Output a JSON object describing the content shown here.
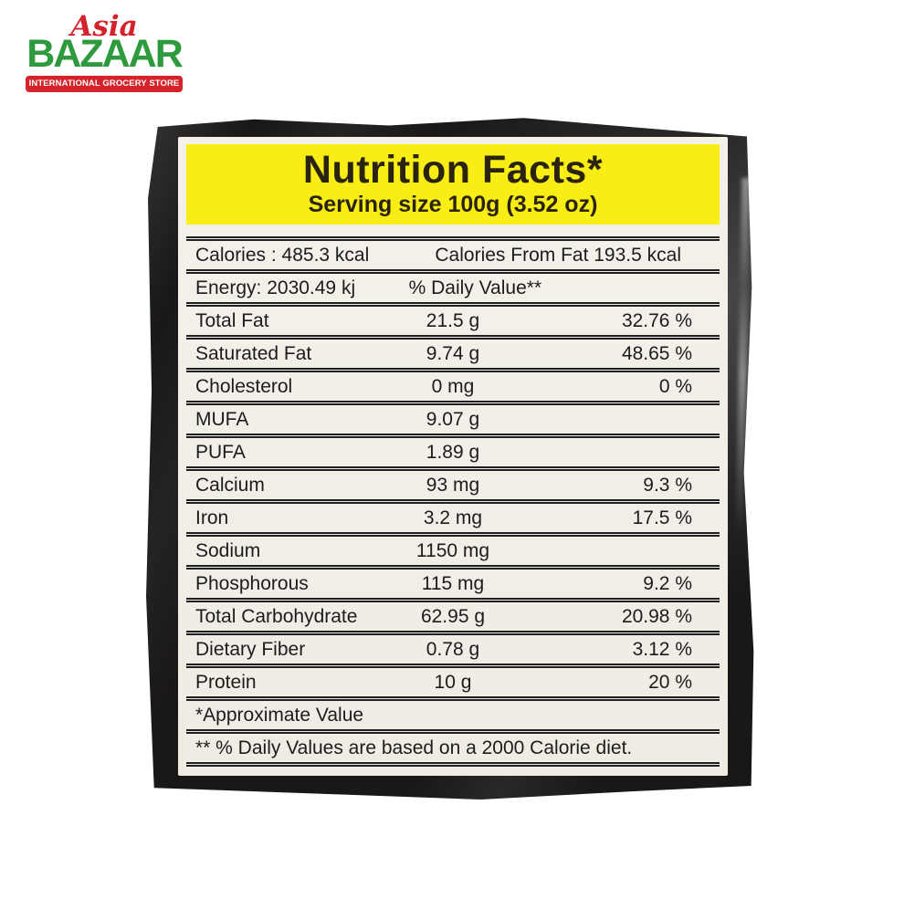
{
  "logo": {
    "asia": "Asia",
    "bazaar": "BAZAAR",
    "tagline": "INTERNATIONAL GROCERY STORE",
    "colors": {
      "red": "#d4232b",
      "green": "#2d9b3d"
    }
  },
  "label": {
    "title": "Nutrition Facts*",
    "serving_size": "Serving size 100g (3.52 oz)",
    "calories_row": {
      "left": "Calories : 485.3 kcal",
      "right": "Calories From Fat 193.5 kcal"
    },
    "energy_row": {
      "left": "Energy: 2030.49 kj",
      "right": "% Daily Value**"
    },
    "nutrients": [
      {
        "name": "Total Fat",
        "amount": "21.5 g",
        "dv": "32.76 %"
      },
      {
        "name": "Saturated Fat",
        "amount": "9.74 g",
        "dv": "48.65 %"
      },
      {
        "name": "Cholesterol",
        "amount": "0 mg",
        "dv": "0 %"
      },
      {
        "name": "MUFA",
        "amount": "9.07 g",
        "dv": ""
      },
      {
        "name": "PUFA",
        "amount": "1.89 g",
        "dv": ""
      },
      {
        "name": "Calcium",
        "amount": "93 mg",
        "dv": "9.3 %"
      },
      {
        "name": "Iron",
        "amount": "3.2 mg",
        "dv": "17.5 %"
      },
      {
        "name": "Sodium",
        "amount": "1150 mg",
        "dv": ""
      },
      {
        "name": "Phosphorous",
        "amount": "115 mg",
        "dv": "9.2 %"
      },
      {
        "name": "Total Carbohydrate",
        "amount": "62.95 g",
        "dv": "20.98 %"
      },
      {
        "name": "Dietary Fiber",
        "amount": "0.78 g",
        "dv": "3.12 %"
      },
      {
        "name": "Protein",
        "amount": "10 g",
        "dv": "20 %"
      }
    ],
    "footnotes": [
      "*Approximate Value",
      "** % Daily Values are based on a 2000 Calorie diet."
    ],
    "colors": {
      "band_yellow": "#f8ed15",
      "label_bg": "#f1eee7",
      "bag_black": "#1a1717"
    }
  }
}
